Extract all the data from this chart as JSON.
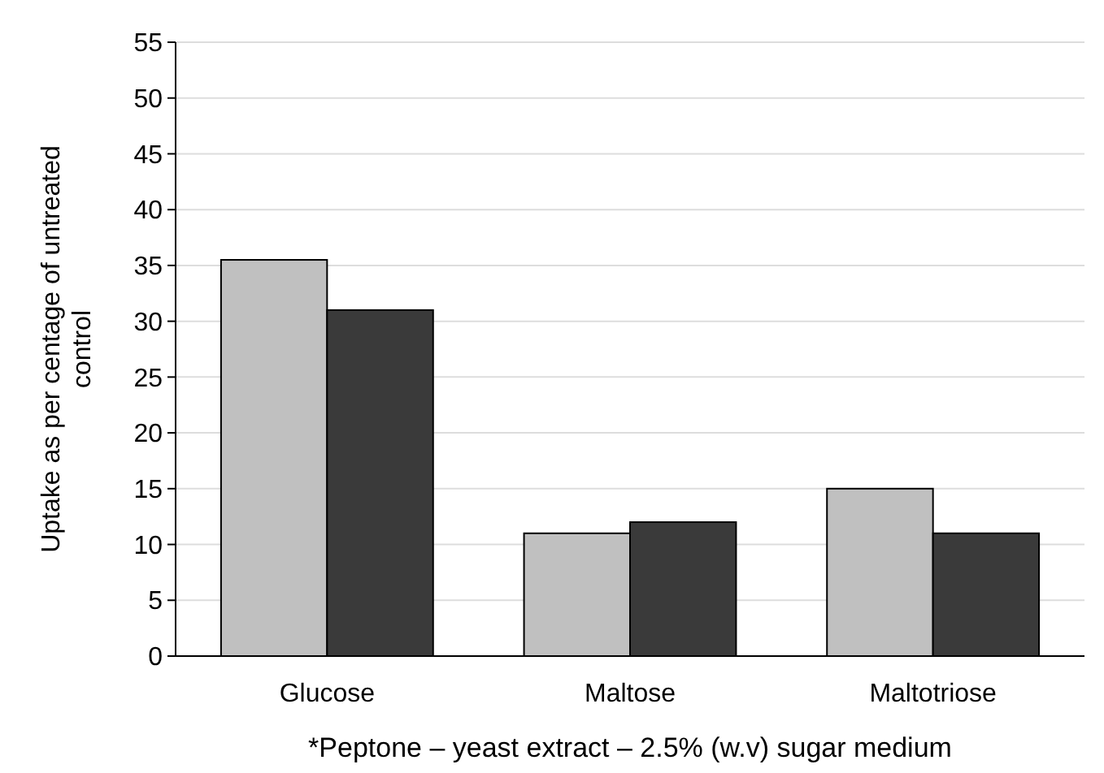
{
  "chart_data": {
    "type": "bar",
    "xlabel": "*Peptone – yeast extract – 2.5% (w.v) sugar medium",
    "ylabel": "Uptake as per centage of untreated control",
    "categories": [
      "Glucose",
      "Maltose",
      "Maltotriose"
    ],
    "series": [
      {
        "color": "#c0c0c0",
        "values": [
          35.5,
          11,
          15
        ]
      },
      {
        "color": "#3a3a3a",
        "values": [
          31,
          12,
          11
        ]
      }
    ],
    "ylim": [
      0,
      55
    ],
    "yticks": [
      0,
      5,
      10,
      15,
      20,
      25,
      30,
      35,
      40,
      45,
      50,
      55
    ],
    "grid": "y"
  }
}
